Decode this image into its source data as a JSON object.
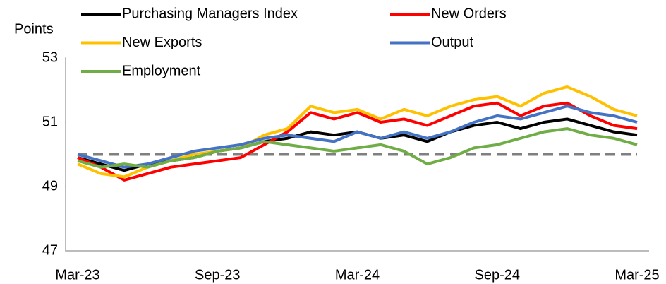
{
  "chart_data": {
    "type": "line",
    "y_label": "Points",
    "categories": [
      "Mar-23",
      null,
      null,
      null,
      null,
      null,
      "Sep-23",
      null,
      null,
      null,
      null,
      null,
      "Mar-24",
      null,
      null,
      null,
      null,
      null,
      "Sep-24",
      null,
      null,
      null,
      null,
      null,
      "Mar-25"
    ],
    "series": [
      {
        "name": "Purchasing Managers Index",
        "color": "#000000",
        "values": [
          49.9,
          49.7,
          49.5,
          49.7,
          49.8,
          49.9,
          50.1,
          50.2,
          50.4,
          50.5,
          50.7,
          50.6,
          50.7,
          50.5,
          50.6,
          50.4,
          50.7,
          50.9,
          51.0,
          50.8,
          51.0,
          51.1,
          50.9,
          50.7,
          50.6
        ]
      },
      {
        "name": "New Orders",
        "color": "#ff0000",
        "values": [
          49.9,
          49.6,
          49.2,
          49.4,
          49.6,
          49.7,
          49.8,
          49.9,
          50.3,
          50.7,
          51.3,
          51.1,
          51.3,
          51.0,
          51.1,
          50.9,
          51.2,
          51.5,
          51.6,
          51.2,
          51.5,
          51.6,
          51.2,
          50.9,
          50.8
        ]
      },
      {
        "name": "New Exports",
        "color": "#ffc000",
        "values": [
          49.7,
          49.4,
          49.3,
          49.6,
          49.8,
          50.0,
          50.1,
          50.2,
          50.6,
          50.8,
          51.5,
          51.3,
          51.4,
          51.1,
          51.4,
          51.2,
          51.5,
          51.7,
          51.8,
          51.5,
          51.9,
          52.1,
          51.8,
          51.4,
          51.2
        ]
      },
      {
        "name": "Output",
        "color": "#4472c4",
        "values": [
          50.0,
          49.8,
          49.6,
          49.7,
          49.9,
          50.1,
          50.2,
          50.3,
          50.5,
          50.6,
          50.5,
          50.4,
          50.7,
          50.5,
          50.7,
          50.5,
          50.7,
          51.0,
          51.2,
          51.1,
          51.3,
          51.5,
          51.3,
          51.2,
          51.0
        ]
      },
      {
        "name": "Employment",
        "color": "#70ad47",
        "values": [
          49.8,
          49.6,
          49.7,
          49.6,
          49.8,
          49.9,
          50.1,
          50.2,
          50.4,
          50.3,
          50.2,
          50.1,
          50.2,
          50.3,
          50.1,
          49.7,
          49.9,
          50.2,
          50.3,
          50.5,
          50.7,
          50.8,
          50.6,
          50.5,
          50.3
        ]
      }
    ],
    "reference_line": {
      "value": 50,
      "color": "#808080"
    },
    "ylim": [
      47,
      53
    ],
    "yticks": [
      47,
      49,
      51,
      53
    ],
    "grid": false,
    "legend": "top"
  }
}
